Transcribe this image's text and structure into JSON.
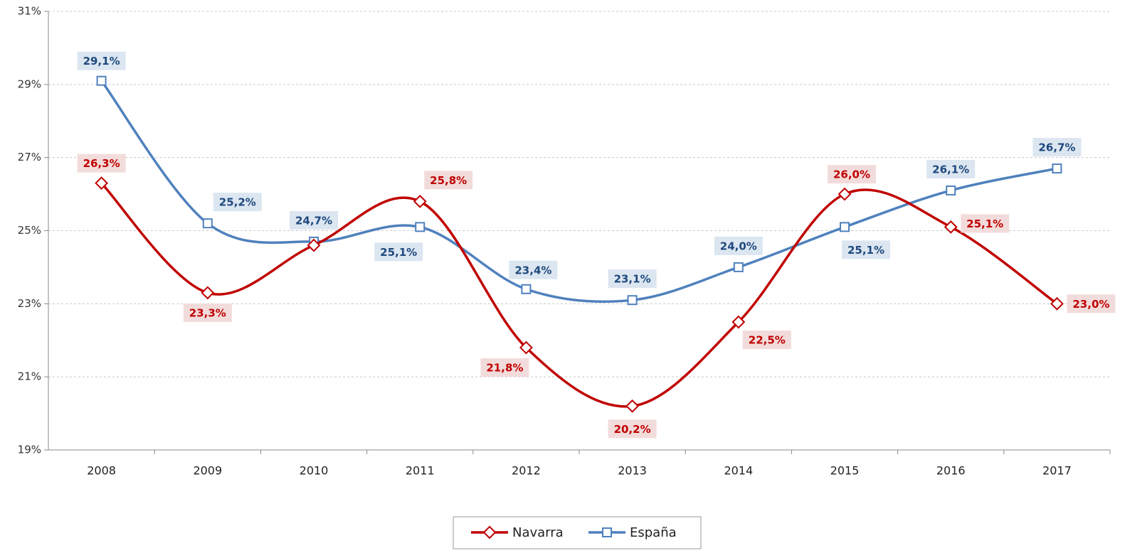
{
  "chart_data": {
    "type": "line",
    "categories": [
      "2008",
      "2009",
      "2010",
      "2011",
      "2012",
      "2013",
      "2014",
      "2015",
      "2016",
      "2017"
    ],
    "series": [
      {
        "name": "Navarra",
        "color": "#c00000",
        "marker": "diamond",
        "values": [
          26.3,
          23.3,
          24.6,
          25.8,
          21.8,
          20.2,
          22.5,
          26.0,
          25.1,
          23.0
        ],
        "value_labels": [
          "26,3%",
          "23,3%",
          null,
          "25,8%",
          "21,8%",
          "20,2%",
          "22,5%",
          "26,0%",
          "25,1%",
          "23,0%"
        ]
      },
      {
        "name": "España",
        "color": "#4f81bd",
        "marker": "square",
        "values": [
          29.1,
          25.2,
          24.7,
          25.1,
          23.4,
          23.1,
          24.0,
          25.1,
          26.1,
          26.7
        ],
        "value_labels": [
          "29,1%",
          "25,2%",
          "24,7%",
          "25,1%",
          "23,4%",
          "23,1%",
          "24,0%",
          "25,1%",
          "26,1%",
          "26,7%"
        ]
      }
    ],
    "ylim": [
      19,
      31
    ],
    "yticks": [
      {
        "value": 19,
        "label": "19%"
      },
      {
        "value": 21,
        "label": "21%"
      },
      {
        "value": 23,
        "label": "23%"
      },
      {
        "value": 25,
        "label": "25%"
      },
      {
        "value": 27,
        "label": "27%"
      },
      {
        "value": 29,
        "label": "29%"
      },
      {
        "value": 31,
        "label": "31%"
      }
    ],
    "grid": true,
    "smooth": true,
    "legend": "bottom"
  }
}
